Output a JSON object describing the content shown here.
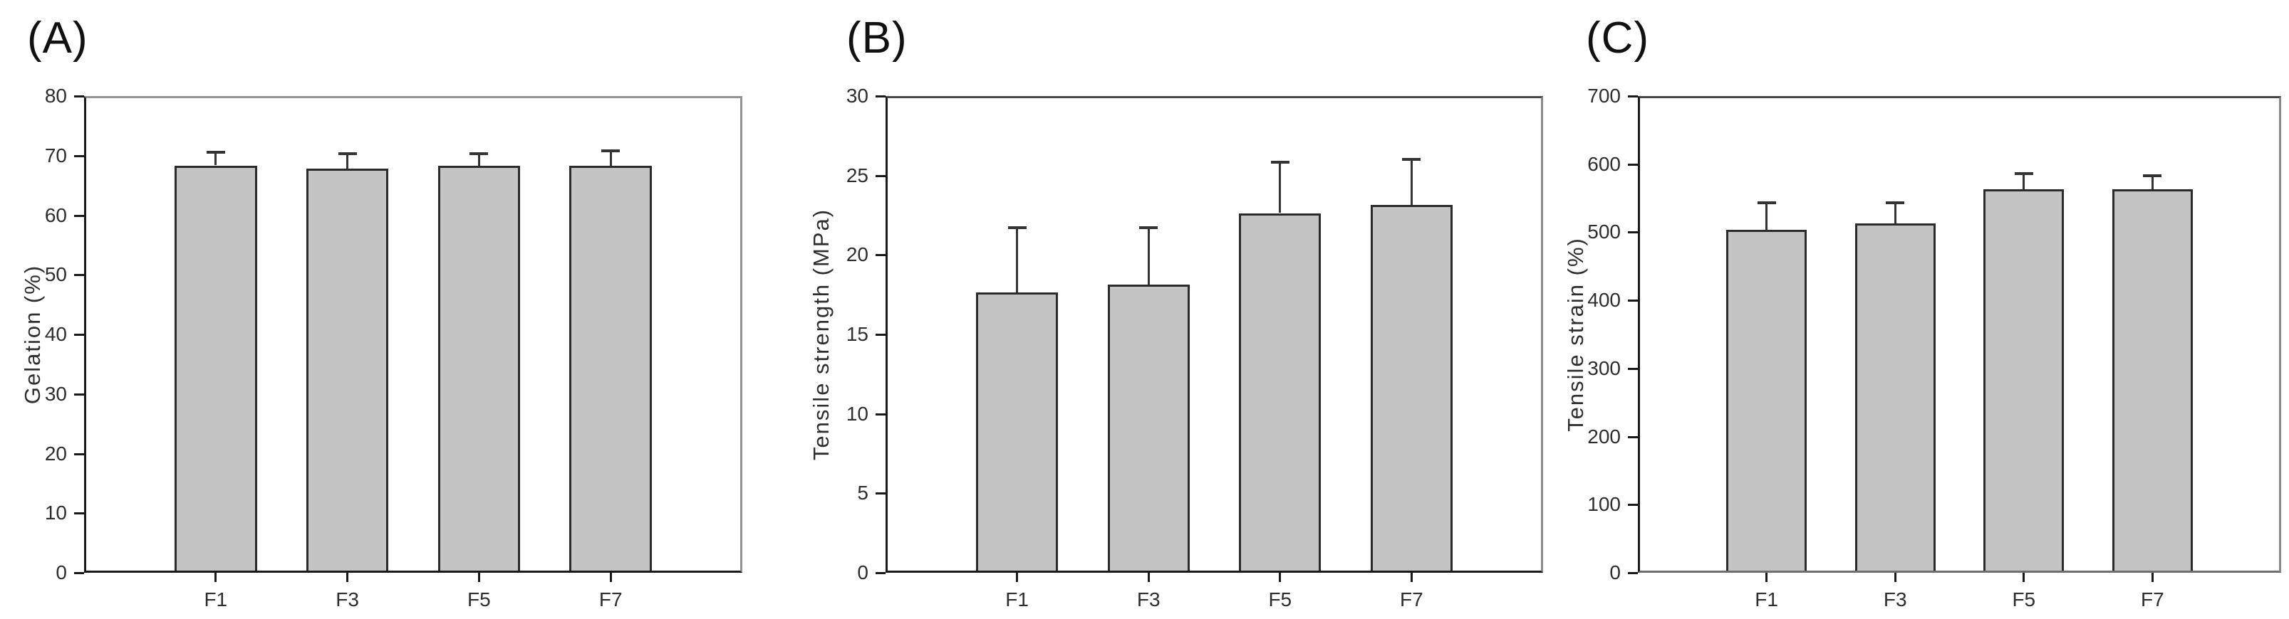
{
  "figure": {
    "background": "#ffffff",
    "bar_fill": "#c4c4c4",
    "bar_edge": "#2b2b2b",
    "axis_color": "#1a1a1a",
    "box_top_right_color": "#8c8c8c",
    "error_bar_color": "#333333"
  },
  "chart_data": [
    {
      "type": "bar",
      "panel_label": "(A)",
      "title": "",
      "xlabel": "",
      "ylabel": "Gelation (%)",
      "categories": [
        "F1",
        "F3",
        "F5",
        "F7"
      ],
      "values": [
        68,
        67.5,
        68,
        68
      ],
      "errors_up": [
        2.2,
        2.5,
        2.0,
        2.5
      ],
      "ylim": [
        0,
        80
      ],
      "ytick_step": 10,
      "yticks": [
        "0",
        "10",
        "20",
        "30",
        "40",
        "50",
        "60",
        "70",
        "80"
      ],
      "grid": false,
      "legend": "none",
      "error_direction": "up"
    },
    {
      "type": "bar",
      "panel_label": "(B)",
      "title": "",
      "xlabel": "",
      "ylabel": "Tensile strength (MPa)",
      "categories": [
        "F1",
        "F3",
        "F5",
        "F7"
      ],
      "values": [
        17.5,
        18,
        22.5,
        23
      ],
      "errors_up": [
        4.1,
        3.6,
        3.2,
        2.9
      ],
      "ylim": [
        0,
        30
      ],
      "ytick_step": 5,
      "yticks": [
        "0",
        "5",
        "10",
        "15",
        "20",
        "25",
        "30"
      ],
      "grid": false,
      "legend": "none",
      "error_direction": "up"
    },
    {
      "type": "bar",
      "panel_label": "(C)",
      "title": "",
      "xlabel": "",
      "ylabel": "Tensile strain (%)",
      "categories": [
        "F1",
        "F3",
        "F5",
        "F7"
      ],
      "values": [
        500,
        510,
        560,
        560
      ],
      "errors_up": [
        40,
        30,
        23,
        20
      ],
      "ylim": [
        0,
        700
      ],
      "ytick_step": 100,
      "yticks": [
        "0",
        "100",
        "200",
        "300",
        "400",
        "500",
        "600",
        "700"
      ],
      "grid": false,
      "legend": "none",
      "error_direction": "up"
    }
  ]
}
